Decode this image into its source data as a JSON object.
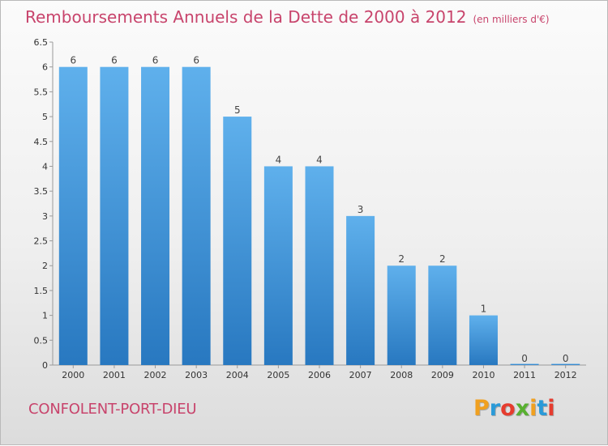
{
  "title": "Remboursements Annuels de la Dette de 2000 à 2012",
  "unit": "(en milliers d'€)",
  "commune": "CONFOLENT-PORT-DIEU",
  "logo": {
    "text": "Proxiti",
    "colors": [
      "#f0a020",
      "#2a9ad8",
      "#e63c2e",
      "#58b030",
      "#f0a020",
      "#2a9ad8",
      "#e63c2e"
    ]
  },
  "colors": {
    "bar_top": "#5fb0ec",
    "bar_bottom": "#2878c0",
    "title": "#c8446c"
  },
  "chart_data": {
    "type": "bar",
    "categories": [
      "2000",
      "2001",
      "2002",
      "2003",
      "2004",
      "2005",
      "2006",
      "2007",
      "2008",
      "2009",
      "2010",
      "2011",
      "2012"
    ],
    "values": [
      6,
      6,
      6,
      6,
      5,
      4,
      4,
      3,
      2,
      2,
      1,
      0,
      0
    ],
    "ylim": [
      0,
      6.5
    ],
    "yticks": [
      "0",
      "0.5",
      "1",
      "1.5",
      "2",
      "2.5",
      "3",
      "3.5",
      "4",
      "4.5",
      "5",
      "5.5",
      "6",
      "6.5"
    ],
    "grid": false,
    "title": "Remboursements Annuels de la Dette de 2000 à 2012",
    "xlabel": "",
    "ylabel": ""
  }
}
